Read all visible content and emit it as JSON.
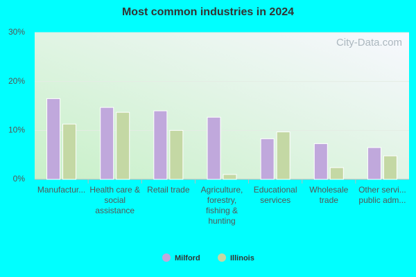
{
  "chart_data": {
    "type": "bar",
    "title": "Most common industries in 2024",
    "watermark": "City-Data.com",
    "categories": [
      "Manufactur...",
      "Health care & social assistance",
      "Retail trade",
      "Agriculture, forestry, fishing & hunting",
      "Educational services",
      "Wholesale trade",
      "Other servi... public adm..."
    ],
    "series": [
      {
        "name": "Milford",
        "color": "#c0a8dc",
        "values": [
          16.5,
          14.7,
          14.0,
          12.7,
          8.3,
          7.3,
          6.5
        ]
      },
      {
        "name": "Illinois",
        "color": "#c4d8a4",
        "values": [
          11.3,
          13.7,
          10.0,
          1.0,
          9.7,
          2.4,
          4.8
        ]
      }
    ],
    "ylim": [
      0,
      30
    ],
    "yticks": [
      {
        "value": 0,
        "label": "0%"
      },
      {
        "value": 10,
        "label": "10%"
      },
      {
        "value": 20,
        "label": "20%"
      },
      {
        "value": 30,
        "label": "30%"
      }
    ],
    "grid": true
  }
}
